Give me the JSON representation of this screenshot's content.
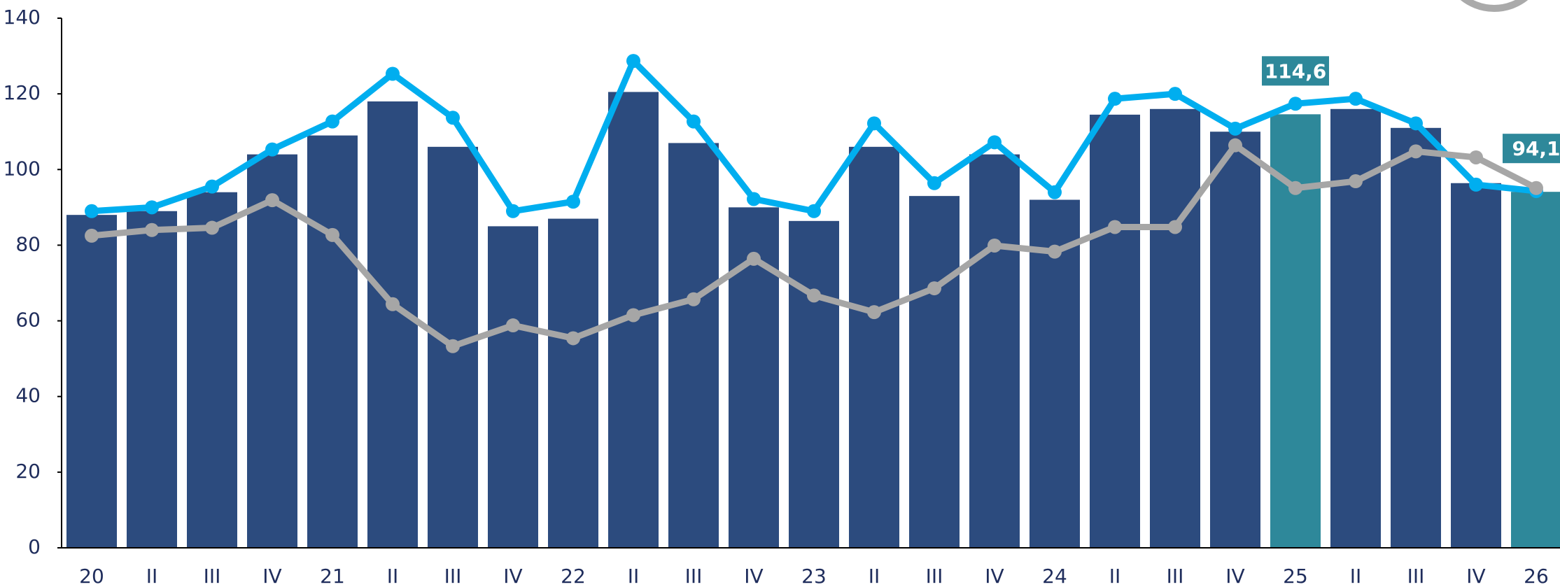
{
  "chart_data": {
    "type": "bar",
    "categories": [
      "20",
      "II",
      "III",
      "IV",
      "21",
      "II",
      "III",
      "IV",
      "22",
      "II",
      "III",
      "IV",
      "23",
      "II",
      "III",
      "IV",
      "24",
      "II",
      "III",
      "IV",
      "25",
      "II",
      "III",
      "IV",
      "26"
    ],
    "series": [
      {
        "type": "bar",
        "color": "#2c4b7e",
        "colors": [
          "#2c4b7e",
          "#2c4b7e",
          "#2c4b7e",
          "#2c4b7e",
          "#2c4b7e",
          "#2c4b7e",
          "#2c4b7e",
          "#2c4b7e",
          "#2c4b7e",
          "#2c4b7e",
          "#2c4b7e",
          "#2c4b7e",
          "#2c4b7e",
          "#2c4b7e",
          "#2c4b7e",
          "#2c4b7e",
          "#2c4b7e",
          "#2c4b7e",
          "#2c4b7e",
          "#2c4b7e",
          "#2e889a",
          "#2c4b7e",
          "#2c4b7e",
          "#2c4b7e",
          "#2e889a"
        ],
        "values": [
          88,
          89,
          94,
          104,
          109,
          118,
          106,
          85,
          87,
          120.5,
          107,
          90,
          86.4,
          106,
          93,
          104,
          92,
          114.5,
          116,
          110,
          114.6,
          116,
          111,
          96.4,
          94.1
        ],
        "value_labels": [
          null,
          null,
          null,
          null,
          null,
          null,
          null,
          null,
          null,
          null,
          null,
          null,
          null,
          null,
          null,
          null,
          null,
          null,
          null,
          null,
          "114,6",
          null,
          null,
          null,
          "94,1"
        ],
        "label_color": "#2e889a"
      },
      {
        "type": "line",
        "color": "#00aeef",
        "values": [
          89,
          90,
          95.5,
          105.3,
          112.7,
          125.3,
          113.7,
          89,
          91.5,
          128.7,
          112.7,
          92.2,
          89,
          112.2,
          96.4,
          107.2,
          94,
          118.7,
          120,
          110.8,
          117.4,
          118.7,
          112.2,
          96,
          94.3
        ]
      },
      {
        "type": "line",
        "color": "#a6a6a6",
        "values": [
          82.5,
          84,
          84.6,
          91.9,
          82.7,
          64.4,
          53.3,
          58.8,
          55.4,
          61.5,
          65.7,
          76.4,
          66.7,
          62.3,
          68.6,
          79.9,
          78.3,
          84.8,
          84.8,
          106.4,
          95.1,
          96.9,
          104.8,
          103.2,
          95.1
        ]
      }
    ],
    "ylim": [
      0,
      140
    ],
    "yticks": [
      0,
      20,
      40,
      60,
      80,
      100,
      120,
      140
    ],
    "grid": false
  }
}
